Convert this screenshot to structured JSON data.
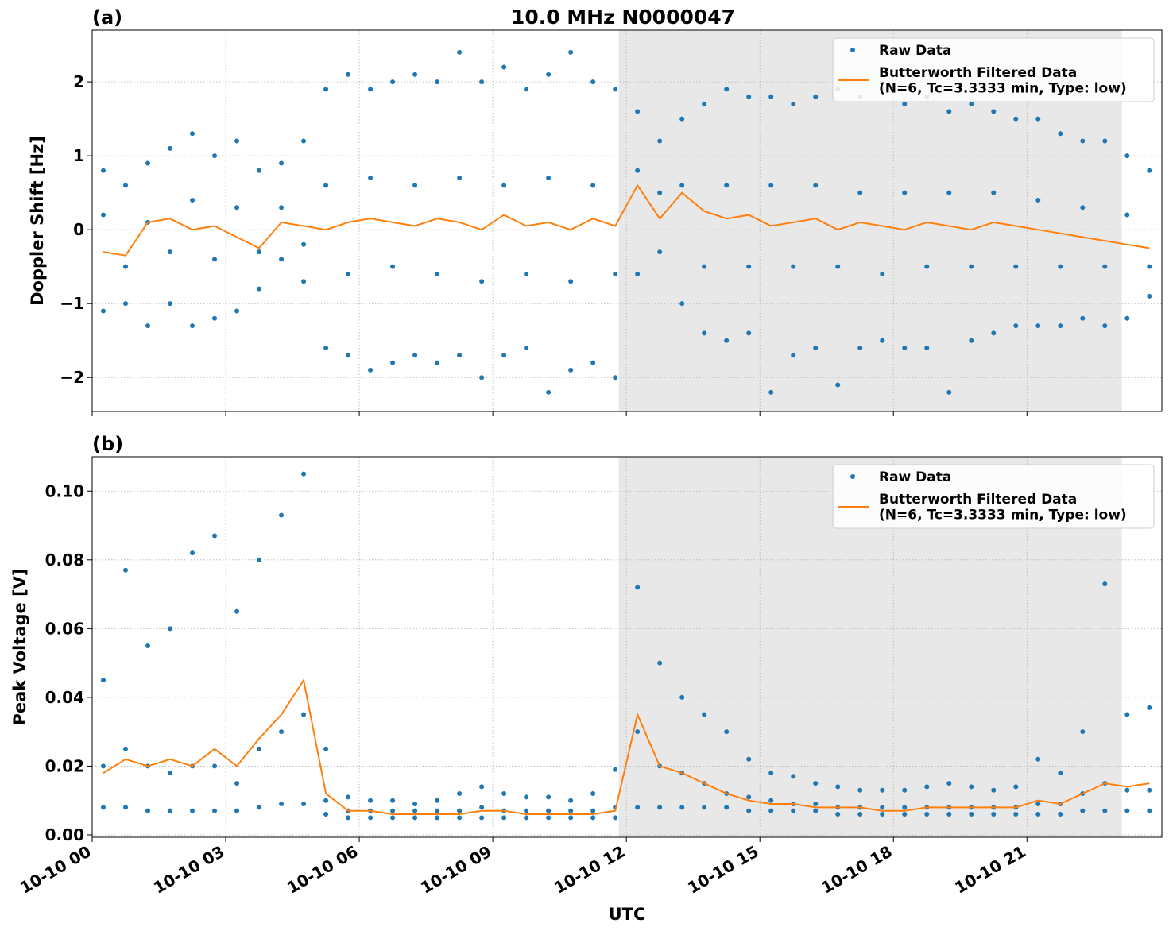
{
  "chart_data": [
    {
      "type": "scatter",
      "panel_label": "(a)",
      "title": "10.0 MHz N0000047",
      "ylabel": "Doppler Shift [Hz]",
      "xlim": [
        0,
        24.03
      ],
      "ylim": [
        -2.46,
        2.7
      ],
      "xticks": [
        {
          "value": 0,
          "label": "10-10 00"
        },
        {
          "value": 3,
          "label": "10-10 03"
        },
        {
          "value": 6,
          "label": "10-10 06"
        },
        {
          "value": 9,
          "label": "10-10 09"
        },
        {
          "value": 12,
          "label": "10-10 12"
        },
        {
          "value": 15,
          "label": "10-10 15"
        },
        {
          "value": 18,
          "label": "10-10 18"
        },
        {
          "value": 21,
          "label": "10-10 21"
        }
      ],
      "show_xtick_labels": false,
      "yticks": [
        {
          "value": -2,
          "label": "−2"
        },
        {
          "value": -1,
          "label": "−1"
        },
        0,
        1,
        2
      ],
      "grid": true,
      "legend": "upper right",
      "shaded_span": [
        11.83,
        23.13
      ],
      "series": [
        {
          "name": "Raw Data",
          "kind": "scatter",
          "color": "#1f77b4",
          "x": [
            0.25,
            0.25,
            0.25,
            0.75,
            0.75,
            0.75,
            1.25,
            1.25,
            1.25,
            1.75,
            1.75,
            1.75,
            2.25,
            2.25,
            2.25,
            2.75,
            2.75,
            2.75,
            3.25,
            3.25,
            3.25,
            3.75,
            3.75,
            3.75,
            4.25,
            4.25,
            4.25,
            4.75,
            4.75,
            4.75,
            5.25,
            5.25,
            5.25,
            5.75,
            5.75,
            5.75,
            6.25,
            6.25,
            6.25,
            6.75,
            6.75,
            6.75,
            7.25,
            7.25,
            7.25,
            7.75,
            7.75,
            7.75,
            8.25,
            8.25,
            8.25,
            8.75,
            8.75,
            8.75,
            9.25,
            9.25,
            9.25,
            9.75,
            9.75,
            9.75,
            10.25,
            10.25,
            10.25,
            10.75,
            10.75,
            10.75,
            11.25,
            11.25,
            11.25,
            11.75,
            11.75,
            11.75,
            12.25,
            12.25,
            12.25,
            12.75,
            12.75,
            12.75,
            13.25,
            13.25,
            13.25,
            13.75,
            13.75,
            13.75,
            14.25,
            14.25,
            14.25,
            14.75,
            14.75,
            14.75,
            15.25,
            15.25,
            15.25,
            15.75,
            15.75,
            15.75,
            16.25,
            16.25,
            16.25,
            16.75,
            16.75,
            16.75,
            17.25,
            17.25,
            17.25,
            17.75,
            17.75,
            17.75,
            18.25,
            18.25,
            18.25,
            18.75,
            18.75,
            18.75,
            19.25,
            19.25,
            19.25,
            19.75,
            19.75,
            19.75,
            20.25,
            20.25,
            20.25,
            20.75,
            20.75,
            20.75,
            21.25,
            21.25,
            21.25,
            21.75,
            21.75,
            21.75,
            22.25,
            22.25,
            22.25,
            22.75,
            22.75,
            22.75,
            23.25,
            23.25,
            23.25,
            23.75,
            23.75,
            23.75
          ],
          "values": [
            0.8,
            0.2,
            -1.1,
            0.6,
            -0.5,
            -1.0,
            0.9,
            0.1,
            -1.3,
            1.1,
            -0.3,
            -1.0,
            1.3,
            0.4,
            -1.3,
            1.0,
            -0.4,
            -1.2,
            1.2,
            0.3,
            -1.1,
            0.8,
            -0.3,
            -0.8,
            0.9,
            0.3,
            -0.4,
            1.2,
            -0.2,
            -0.7,
            1.9,
            0.6,
            -1.6,
            2.1,
            -0.6,
            -1.7,
            1.9,
            0.7,
            -1.9,
            2.0,
            -0.5,
            -1.8,
            2.1,
            0.6,
            -1.7,
            2.0,
            -0.6,
            -1.8,
            2.4,
            0.7,
            -1.7,
            2.0,
            -0.7,
            -2.0,
            2.2,
            0.6,
            -1.7,
            1.9,
            -0.6,
            -1.6,
            2.1,
            0.7,
            -2.2,
            2.4,
            -0.7,
            -1.9,
            2.0,
            0.6,
            -1.8,
            1.9,
            -0.6,
            -2.0,
            1.6,
            0.8,
            -0.6,
            1.2,
            0.5,
            -0.3,
            1.5,
            0.6,
            -1.0,
            1.7,
            -0.5,
            -1.4,
            1.9,
            0.6,
            -1.5,
            1.8,
            -0.5,
            -1.4,
            1.8,
            0.6,
            -2.2,
            1.7,
            -0.5,
            -1.7,
            1.8,
            0.6,
            -1.6,
            1.9,
            -0.5,
            -2.1,
            1.8,
            0.5,
            -1.6,
            1.9,
            -0.6,
            -1.5,
            1.7,
            0.5,
            -1.6,
            1.8,
            -0.5,
            -1.6,
            1.6,
            0.5,
            -2.2,
            1.7,
            -0.5,
            -1.5,
            1.6,
            0.5,
            -1.4,
            1.5,
            -0.5,
            -1.3,
            1.5,
            0.4,
            -1.3,
            1.3,
            -0.5,
            -1.3,
            1.2,
            0.3,
            -1.2,
            1.2,
            -0.5,
            -1.3,
            1.0,
            0.2,
            -1.2,
            0.8,
            -0.5,
            -0.9
          ]
        },
        {
          "name": "Butterworth Filtered Data\n(N=6, Tc=3.3333 min, Type: low)",
          "kind": "line",
          "color": "#ff7f0e",
          "x": [
            0.25,
            0.75,
            1.25,
            1.75,
            2.25,
            2.75,
            3.25,
            3.75,
            4.25,
            4.75,
            5.25,
            5.75,
            6.25,
            6.75,
            7.25,
            7.75,
            8.25,
            8.75,
            9.25,
            9.75,
            10.25,
            10.75,
            11.25,
            11.75,
            12.25,
            12.75,
            13.25,
            13.75,
            14.25,
            14.75,
            15.25,
            15.75,
            16.25,
            16.75,
            17.25,
            17.75,
            18.25,
            18.75,
            19.25,
            19.75,
            20.25,
            20.75,
            21.25,
            21.75,
            22.25,
            22.75,
            23.25,
            23.75
          ],
          "values": [
            -0.3,
            -0.35,
            0.1,
            0.15,
            0.0,
            0.05,
            -0.1,
            -0.25,
            0.1,
            0.05,
            0.0,
            0.1,
            0.15,
            0.1,
            0.05,
            0.15,
            0.1,
            0.0,
            0.2,
            0.05,
            0.1,
            0.0,
            0.15,
            0.05,
            0.6,
            0.15,
            0.5,
            0.25,
            0.15,
            0.2,
            0.05,
            0.1,
            0.15,
            0.0,
            0.1,
            0.05,
            0.0,
            0.1,
            0.05,
            0.0,
            0.1,
            0.05,
            0.0,
            -0.05,
            -0.1,
            -0.15,
            -0.2,
            -0.25
          ]
        }
      ]
    },
    {
      "type": "scatter",
      "panel_label": "(b)",
      "ylabel": "Peak Voltage [V]",
      "xlabel": "UTC",
      "xlim": [
        0,
        24.03
      ],
      "ylim": [
        -0.0007,
        0.11
      ],
      "xticks": [
        {
          "value": 0,
          "label": "10-10 00"
        },
        {
          "value": 3,
          "label": "10-10 03"
        },
        {
          "value": 6,
          "label": "10-10 06"
        },
        {
          "value": 9,
          "label": "10-10 09"
        },
        {
          "value": 12,
          "label": "10-10 12"
        },
        {
          "value": 15,
          "label": "10-10 15"
        },
        {
          "value": 18,
          "label": "10-10 18"
        },
        {
          "value": 21,
          "label": "10-10 21"
        }
      ],
      "show_xtick_labels": true,
      "yticks": [
        {
          "value": 0,
          "label": "0.00"
        },
        {
          "value": 0.02,
          "label": "0.02"
        },
        {
          "value": 0.04,
          "label": "0.04"
        },
        {
          "value": 0.06,
          "label": "0.06"
        },
        {
          "value": 0.08,
          "label": "0.08"
        },
        {
          "value": 0.1,
          "label": "0.10"
        }
      ],
      "grid": true,
      "legend": "upper right",
      "shaded_span": [
        11.83,
        23.13
      ],
      "series": [
        {
          "name": "Raw Data",
          "kind": "scatter",
          "color": "#1f77b4",
          "x": [
            0.25,
            0.25,
            0.25,
            0.75,
            0.75,
            0.75,
            1.25,
            1.25,
            1.25,
            1.75,
            1.75,
            1.75,
            2.25,
            2.25,
            2.25,
            2.75,
            2.75,
            2.75,
            3.25,
            3.25,
            3.25,
            3.75,
            3.75,
            3.75,
            4.25,
            4.25,
            4.25,
            4.75,
            4.75,
            4.75,
            5.25,
            5.25,
            5.25,
            5.75,
            5.75,
            5.75,
            6.25,
            6.25,
            6.25,
            6.75,
            6.75,
            6.75,
            7.25,
            7.25,
            7.25,
            7.75,
            7.75,
            7.75,
            8.25,
            8.25,
            8.25,
            8.75,
            8.75,
            8.75,
            9.25,
            9.25,
            9.25,
            9.75,
            9.75,
            9.75,
            10.25,
            10.25,
            10.25,
            10.75,
            10.75,
            10.75,
            11.25,
            11.25,
            11.25,
            11.75,
            11.75,
            11.75,
            12.25,
            12.25,
            12.25,
            12.75,
            12.75,
            12.75,
            13.25,
            13.25,
            13.25,
            13.75,
            13.75,
            13.75,
            14.25,
            14.25,
            14.25,
            14.75,
            14.75,
            14.75,
            15.25,
            15.25,
            15.25,
            15.75,
            15.75,
            15.75,
            16.25,
            16.25,
            16.25,
            16.75,
            16.75,
            16.75,
            17.25,
            17.25,
            17.25,
            17.75,
            17.75,
            17.75,
            18.25,
            18.25,
            18.25,
            18.75,
            18.75,
            18.75,
            19.25,
            19.25,
            19.25,
            19.75,
            19.75,
            19.75,
            20.25,
            20.25,
            20.25,
            20.75,
            20.75,
            20.75,
            21.25,
            21.25,
            21.25,
            21.75,
            21.75,
            21.75,
            22.25,
            22.25,
            22.25,
            22.75,
            22.75,
            22.75,
            23.25,
            23.25,
            23.25,
            23.75,
            23.75,
            23.75
          ],
          "values": [
            0.045,
            0.02,
            0.008,
            0.077,
            0.025,
            0.008,
            0.055,
            0.02,
            0.007,
            0.06,
            0.018,
            0.007,
            0.082,
            0.02,
            0.007,
            0.087,
            0.02,
            0.007,
            0.065,
            0.015,
            0.007,
            0.08,
            0.025,
            0.008,
            0.093,
            0.03,
            0.009,
            0.105,
            0.035,
            0.009,
            0.025,
            0.01,
            0.006,
            0.011,
            0.007,
            0.005,
            0.01,
            0.007,
            0.005,
            0.01,
            0.007,
            0.005,
            0.009,
            0.007,
            0.005,
            0.01,
            0.007,
            0.005,
            0.012,
            0.007,
            0.005,
            0.014,
            0.008,
            0.005,
            0.012,
            0.007,
            0.005,
            0.011,
            0.007,
            0.005,
            0.011,
            0.007,
            0.005,
            0.01,
            0.007,
            0.005,
            0.012,
            0.007,
            0.005,
            0.019,
            0.008,
            0.005,
            0.072,
            0.03,
            0.008,
            0.05,
            0.02,
            0.008,
            0.04,
            0.018,
            0.008,
            0.035,
            0.015,
            0.008,
            0.03,
            0.012,
            0.008,
            0.022,
            0.011,
            0.007,
            0.018,
            0.01,
            0.007,
            0.017,
            0.009,
            0.007,
            0.015,
            0.009,
            0.007,
            0.014,
            0.008,
            0.006,
            0.013,
            0.008,
            0.006,
            0.013,
            0.008,
            0.006,
            0.013,
            0.008,
            0.006,
            0.014,
            0.008,
            0.006,
            0.015,
            0.008,
            0.006,
            0.014,
            0.008,
            0.006,
            0.013,
            0.008,
            0.006,
            0.014,
            0.008,
            0.006,
            0.022,
            0.009,
            0.006,
            0.018,
            0.009,
            0.006,
            0.03,
            0.012,
            0.007,
            0.073,
            0.015,
            0.007,
            0.035,
            0.013,
            0.007,
            0.037,
            0.013,
            0.007
          ]
        },
        {
          "name": "Butterworth Filtered Data\n(N=6, Tc=3.3333 min, Type: low)",
          "kind": "line",
          "color": "#ff7f0e",
          "x": [
            0.25,
            0.75,
            1.25,
            1.75,
            2.25,
            2.75,
            3.25,
            3.75,
            4.25,
            4.75,
            5.25,
            5.75,
            6.25,
            6.75,
            7.25,
            7.75,
            8.25,
            8.75,
            9.25,
            9.75,
            10.25,
            10.75,
            11.25,
            11.75,
            12.25,
            12.75,
            13.25,
            13.75,
            14.25,
            14.75,
            15.25,
            15.75,
            16.25,
            16.75,
            17.25,
            17.75,
            18.25,
            18.75,
            19.25,
            19.75,
            20.25,
            20.75,
            21.25,
            21.75,
            22.25,
            22.75,
            23.25,
            23.75
          ],
          "values": [
            0.018,
            0.022,
            0.02,
            0.022,
            0.02,
            0.025,
            0.02,
            0.028,
            0.035,
            0.045,
            0.012,
            0.007,
            0.007,
            0.006,
            0.006,
            0.006,
            0.006,
            0.007,
            0.007,
            0.006,
            0.006,
            0.006,
            0.006,
            0.007,
            0.035,
            0.02,
            0.018,
            0.015,
            0.012,
            0.01,
            0.009,
            0.009,
            0.008,
            0.008,
            0.008,
            0.007,
            0.007,
            0.008,
            0.008,
            0.008,
            0.008,
            0.008,
            0.01,
            0.009,
            0.012,
            0.015,
            0.014,
            0.015
          ]
        }
      ]
    }
  ]
}
